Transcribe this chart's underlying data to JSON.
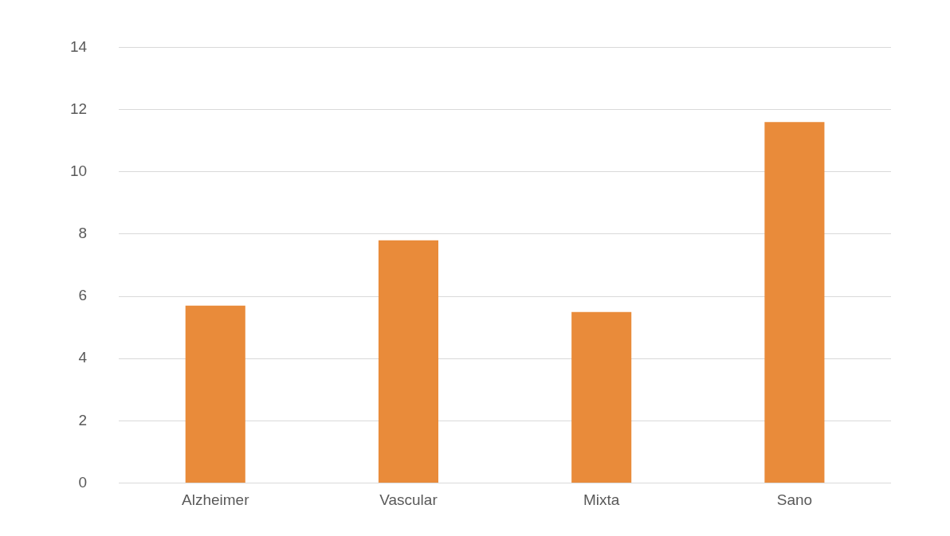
{
  "chart_data": {
    "type": "bar",
    "categories": [
      "Alzheimer",
      "Vascular",
      "Mixta",
      "Sano"
    ],
    "values": [
      5.7,
      7.8,
      5.5,
      11.6
    ],
    "color": "#e98b3a",
    "ylim": [
      0,
      14
    ],
    "yticks": [
      0,
      2,
      4,
      6,
      8,
      10,
      12,
      14
    ],
    "grid": "y",
    "legend": false
  }
}
